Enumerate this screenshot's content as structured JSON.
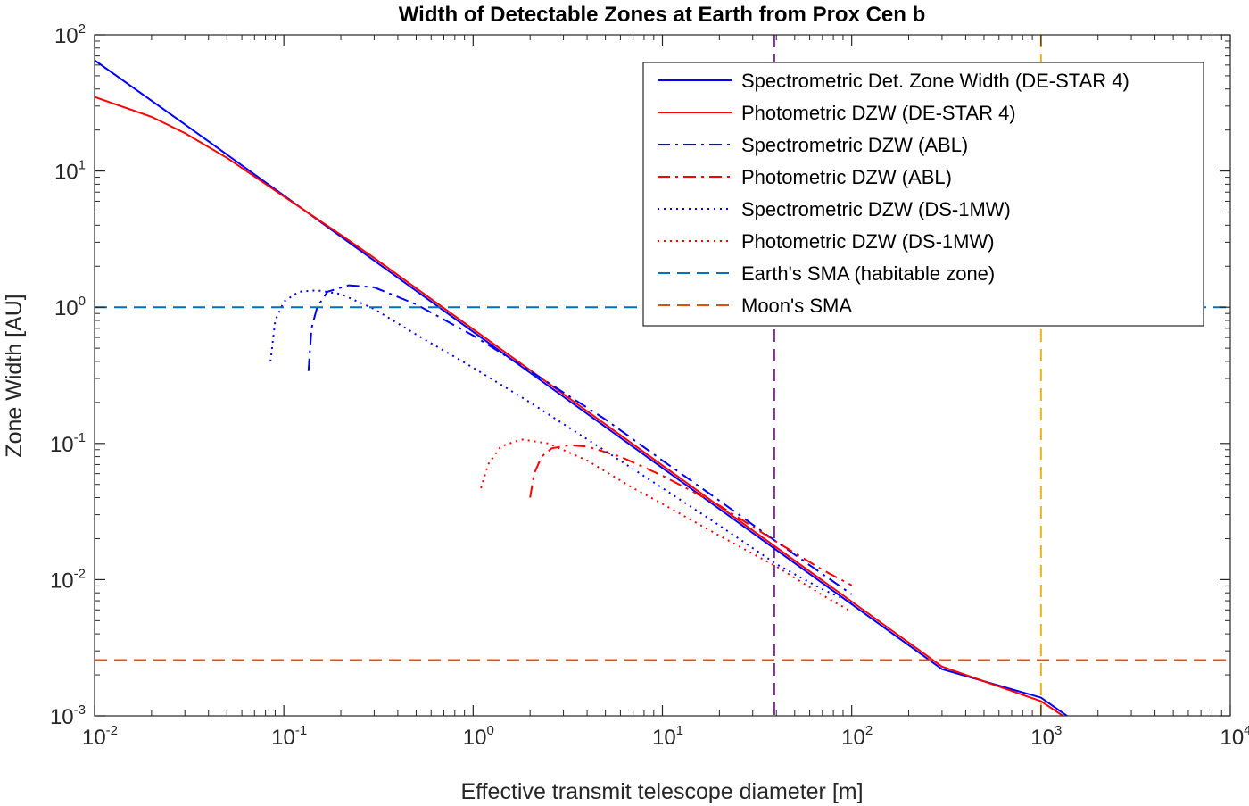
{
  "chart_data": {
    "type": "line",
    "title": "Width of Detectable Zones at Earth from Prox Cen b",
    "xlabel": "Effective transmit telescope diameter [m]",
    "ylabel": "Zone Width [AU]",
    "xscale": "log",
    "yscale": "log",
    "xlim": [
      0.01,
      10000
    ],
    "ylim": [
      0.001,
      100
    ],
    "x_ticks": [
      {
        "value": 0.01,
        "base": "10",
        "exp": "-2"
      },
      {
        "value": 0.1,
        "base": "10",
        "exp": "-1"
      },
      {
        "value": 1,
        "base": "10",
        "exp": "0"
      },
      {
        "value": 10,
        "base": "10",
        "exp": "1"
      },
      {
        "value": 100,
        "base": "10",
        "exp": "2"
      },
      {
        "value": 1000,
        "base": "10",
        "exp": "3"
      },
      {
        "value": 10000,
        "base": "10",
        "exp": "4"
      }
    ],
    "y_ticks": [
      {
        "value": 0.001,
        "base": "10",
        "exp": "-3"
      },
      {
        "value": 0.01,
        "base": "10",
        "exp": "-2"
      },
      {
        "value": 0.1,
        "base": "10",
        "exp": "-1"
      },
      {
        "value": 1,
        "base": "10",
        "exp": "0"
      },
      {
        "value": 10,
        "base": "10",
        "exp": "1"
      },
      {
        "value": 100,
        "base": "10",
        "exp": "2"
      }
    ],
    "legend_location": "top-right",
    "series": [
      {
        "name": "Spectrometric Det. Zone Width (DE-STAR 4)",
        "color": "#0000ff",
        "dash": "solid",
        "x": [
          0.01,
          0.03,
          0.1,
          0.3,
          1,
          3,
          10,
          30,
          100,
          300,
          1000,
          1400
        ],
        "y": [
          65,
          22,
          6.6,
          2.2,
          0.66,
          0.22,
          0.066,
          0.022,
          0.0066,
          0.0022,
          0.00136,
          0.00098
        ]
      },
      {
        "name": "Photometric DZW (DE-STAR 4)",
        "color": "#ff0000",
        "dash": "solid",
        "x": [
          0.01,
          0.02,
          0.03,
          0.05,
          0.1,
          0.2,
          0.3,
          0.5,
          1,
          3,
          10,
          30,
          100,
          300,
          1000,
          1350
        ],
        "y": [
          35,
          25,
          19,
          12.5,
          6.5,
          3.4,
          2.3,
          1.38,
          0.69,
          0.23,
          0.069,
          0.023,
          0.0069,
          0.0023,
          0.00128,
          0.00097
        ]
      },
      {
        "name": "Spectrometric DZW (ABL)",
        "color": "#0000ff",
        "dash": "dashdot",
        "x": [
          0.135,
          0.14,
          0.15,
          0.17,
          0.22,
          0.3,
          0.5,
          1,
          2,
          5,
          10,
          20,
          40,
          70,
          100
        ],
        "y": [
          0.34,
          0.7,
          1.0,
          1.3,
          1.45,
          1.4,
          1.05,
          0.62,
          0.34,
          0.15,
          0.075,
          0.038,
          0.019,
          0.011,
          0.0078
        ]
      },
      {
        "name": "Photometric DZW (ABL)",
        "color": "#ff0000",
        "dash": "dashdot",
        "x": [
          2.0,
          2.1,
          2.3,
          2.6,
          3.2,
          4,
          6,
          10,
          20,
          40,
          70,
          100
        ],
        "y": [
          0.04,
          0.06,
          0.08,
          0.092,
          0.097,
          0.095,
          0.08,
          0.058,
          0.035,
          0.019,
          0.0118,
          0.0091
        ]
      },
      {
        "name": "Spectrometric DZW (DS-1MW)",
        "color": "#0000ff",
        "dash": "dotted",
        "x": [
          0.085,
          0.09,
          0.1,
          0.12,
          0.15,
          0.2,
          0.3,
          0.5,
          1,
          2,
          5,
          10,
          20,
          40,
          70,
          100
        ],
        "y": [
          0.4,
          0.8,
          1.1,
          1.3,
          1.33,
          1.25,
          0.97,
          0.63,
          0.36,
          0.2,
          0.088,
          0.047,
          0.025,
          0.013,
          0.0085,
          0.0068
        ]
      },
      {
        "name": "Photometric DZW (DS-1MW)",
        "color": "#ff0000",
        "dash": "dotted",
        "x": [
          1.1,
          1.2,
          1.4,
          1.8,
          2.5,
          4,
          7,
          10,
          20,
          40,
          70,
          100
        ],
        "y": [
          0.047,
          0.07,
          0.095,
          0.107,
          0.1,
          0.075,
          0.047,
          0.036,
          0.021,
          0.0125,
          0.0077,
          0.0058
        ]
      },
      {
        "name": "Earth's SMA (habitable zone)",
        "color": "#0072bd",
        "dash": "dashed",
        "orientation": "horizontal",
        "y_value": 1
      },
      {
        "name": "Moon's SMA",
        "color": "#d95319",
        "dash": "dashed",
        "orientation": "horizontal",
        "y_value": 0.00257
      }
    ],
    "vertical_reference_lines": [
      {
        "x_value": 39,
        "color": "#7e2f8e",
        "dash": "dashed"
      },
      {
        "x_value": 1000,
        "color": "#edb120",
        "dash": "dashed"
      }
    ]
  }
}
